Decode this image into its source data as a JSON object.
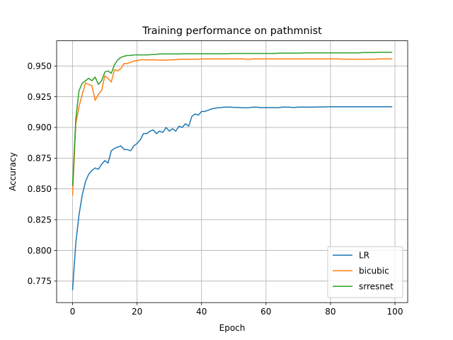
{
  "chart_data": {
    "type": "line",
    "title": "Training performance on pathmnist",
    "xlabel": "Epoch",
    "ylabel": "Accuracy",
    "xlim": [
      -4.95,
      103.95
    ],
    "ylim": [
      0.7575,
      0.9705
    ],
    "xticks": [
      0,
      20,
      40,
      60,
      80,
      100
    ],
    "yticks": [
      0.775,
      0.8,
      0.825,
      0.85,
      0.875,
      0.9,
      0.925,
      0.95
    ],
    "ytick_labels": [
      "0.775",
      "0.800",
      "0.825",
      "0.850",
      "0.875",
      "0.900",
      "0.925",
      "0.950"
    ],
    "grid": true,
    "legend_position": "lower-right",
    "series": [
      {
        "name": "LR",
        "color": "#1f77b4",
        "x": [
          0,
          1,
          2,
          3,
          4,
          5,
          6,
          7,
          8,
          9,
          10,
          11,
          12,
          13,
          14,
          15,
          16,
          17,
          18,
          19,
          20,
          21,
          22,
          23,
          24,
          25,
          26,
          27,
          28,
          29,
          30,
          31,
          32,
          33,
          34,
          35,
          36,
          37,
          38,
          39,
          40,
          41,
          42,
          43,
          44,
          45,
          46,
          47,
          48,
          49,
          50,
          51,
          52,
          53,
          54,
          55,
          56,
          57,
          58,
          59,
          60,
          61,
          62,
          63,
          64,
          65,
          66,
          67,
          68,
          69,
          70,
          71,
          72,
          73,
          74,
          75,
          76,
          77,
          78,
          79,
          80,
          81,
          82,
          83,
          84,
          85,
          86,
          87,
          88,
          89,
          90,
          91,
          92,
          93,
          94,
          95,
          96,
          97,
          98,
          99
        ],
        "values": [
          0.768,
          0.806,
          0.829,
          0.845,
          0.856,
          0.862,
          0.865,
          0.867,
          0.866,
          0.87,
          0.873,
          0.871,
          0.881,
          0.883,
          0.884,
          0.885,
          0.882,
          0.882,
          0.881,
          0.885,
          0.887,
          0.89,
          0.895,
          0.895,
          0.897,
          0.898,
          0.895,
          0.897,
          0.896,
          0.9,
          0.897,
          0.899,
          0.897,
          0.901,
          0.9,
          0.903,
          0.901,
          0.909,
          0.911,
          0.91,
          0.913,
          0.913,
          0.914,
          0.915,
          0.9155,
          0.916,
          0.9162,
          0.9165,
          0.9165,
          0.9165,
          0.9163,
          0.9163,
          0.9162,
          0.916,
          0.916,
          0.9162,
          0.9165,
          0.9165,
          0.9162,
          0.9162,
          0.9162,
          0.9162,
          0.9162,
          0.916,
          0.9162,
          0.9165,
          0.9165,
          0.9165,
          0.9163,
          0.9163,
          0.9165,
          0.9165,
          0.9165,
          0.9165,
          0.9165,
          0.9165,
          0.9167,
          0.9167,
          0.9167,
          0.9168,
          0.9168,
          0.9168,
          0.9168,
          0.9168,
          0.9168,
          0.9168,
          0.9168,
          0.9168,
          0.9168,
          0.9168,
          0.9168,
          0.9168,
          0.9168,
          0.9168,
          0.9168,
          0.9168,
          0.9168,
          0.9168,
          0.9168,
          0.9168
        ]
      },
      {
        "name": "bicubic",
        "color": "#ff7f0e",
        "x": [
          0,
          1,
          2,
          3,
          4,
          5,
          6,
          7,
          8,
          9,
          10,
          11,
          12,
          13,
          14,
          15,
          16,
          17,
          18,
          19,
          20,
          21,
          22,
          23,
          24,
          25,
          26,
          27,
          28,
          29,
          30,
          31,
          32,
          33,
          34,
          35,
          36,
          37,
          38,
          39,
          40,
          41,
          42,
          43,
          44,
          45,
          46,
          47,
          48,
          49,
          50,
          51,
          52,
          53,
          54,
          55,
          56,
          57,
          58,
          59,
          60,
          61,
          62,
          63,
          64,
          65,
          66,
          67,
          68,
          69,
          70,
          71,
          72,
          73,
          74,
          75,
          76,
          77,
          78,
          79,
          80,
          81,
          82,
          83,
          84,
          85,
          86,
          87,
          88,
          89,
          90,
          91,
          92,
          93,
          94,
          95,
          96,
          97,
          98,
          99
        ],
        "values": [
          0.845,
          0.903,
          0.917,
          0.927,
          0.936,
          0.935,
          0.934,
          0.922,
          0.927,
          0.93,
          0.942,
          0.94,
          0.937,
          0.947,
          0.946,
          0.948,
          0.952,
          0.952,
          0.953,
          0.954,
          0.9545,
          0.955,
          0.955,
          0.955,
          0.955,
          0.955,
          0.955,
          0.9548,
          0.9548,
          0.9548,
          0.955,
          0.955,
          0.9552,
          0.9555,
          0.9555,
          0.9555,
          0.9555,
          0.9555,
          0.9555,
          0.9555,
          0.9558,
          0.9558,
          0.9558,
          0.9558,
          0.9558,
          0.9558,
          0.9558,
          0.9558,
          0.9558,
          0.9558,
          0.9558,
          0.9558,
          0.9558,
          0.9558,
          0.9555,
          0.9555,
          0.9558,
          0.9558,
          0.9558,
          0.9558,
          0.9558,
          0.9558,
          0.9558,
          0.9558,
          0.9558,
          0.9558,
          0.9558,
          0.9558,
          0.9558,
          0.9558,
          0.9558,
          0.9558,
          0.9558,
          0.9558,
          0.9558,
          0.9558,
          0.9558,
          0.9558,
          0.9558,
          0.9558,
          0.9558,
          0.9558,
          0.9558,
          0.9558,
          0.9555,
          0.9555,
          0.9555,
          0.9555,
          0.9555,
          0.9555,
          0.9555,
          0.9555,
          0.9555,
          0.9555,
          0.9555,
          0.9558,
          0.9558,
          0.9558,
          0.9558,
          0.9558
        ]
      },
      {
        "name": "srresnet",
        "color": "#2ca02c",
        "x": [
          0,
          1,
          2,
          3,
          4,
          5,
          6,
          7,
          8,
          9,
          10,
          11,
          12,
          13,
          14,
          15,
          16,
          17,
          18,
          19,
          20,
          21,
          22,
          23,
          24,
          25,
          26,
          27,
          28,
          29,
          30,
          31,
          32,
          33,
          34,
          35,
          36,
          37,
          38,
          39,
          40,
          41,
          42,
          43,
          44,
          45,
          46,
          47,
          48,
          49,
          50,
          51,
          52,
          53,
          54,
          55,
          56,
          57,
          58,
          59,
          60,
          61,
          62,
          63,
          64,
          65,
          66,
          67,
          68,
          69,
          70,
          71,
          72,
          73,
          74,
          75,
          76,
          77,
          78,
          79,
          80,
          81,
          82,
          83,
          84,
          85,
          86,
          87,
          88,
          89,
          90,
          91,
          92,
          93,
          94,
          95,
          96,
          97,
          98,
          99
        ],
        "values": [
          0.853,
          0.907,
          0.93,
          0.936,
          0.938,
          0.94,
          0.938,
          0.941,
          0.935,
          0.938,
          0.945,
          0.946,
          0.944,
          0.951,
          0.955,
          0.957,
          0.958,
          0.9585,
          0.9585,
          0.959,
          0.959,
          0.959,
          0.959,
          0.959,
          0.9592,
          0.9595,
          0.9595,
          0.9598,
          0.9598,
          0.9598,
          0.9598,
          0.9598,
          0.9598,
          0.9598,
          0.96,
          0.96,
          0.96,
          0.96,
          0.96,
          0.96,
          0.96,
          0.96,
          0.96,
          0.96,
          0.96,
          0.96,
          0.96,
          0.96,
          0.96,
          0.9602,
          0.9602,
          0.9602,
          0.9602,
          0.9602,
          0.9602,
          0.9602,
          0.9602,
          0.9602,
          0.9602,
          0.9602,
          0.9602,
          0.9602,
          0.9602,
          0.9602,
          0.9605,
          0.9605,
          0.9605,
          0.9605,
          0.9605,
          0.9605,
          0.9605,
          0.9605,
          0.9607,
          0.9607,
          0.9607,
          0.9607,
          0.9607,
          0.9607,
          0.9607,
          0.9607,
          0.9607,
          0.9607,
          0.9607,
          0.9607,
          0.9607,
          0.9607,
          0.9607,
          0.9607,
          0.9607,
          0.9607,
          0.961,
          0.961,
          0.961,
          0.961,
          0.961,
          0.9612,
          0.9612,
          0.9612,
          0.9612,
          0.9612
        ]
      }
    ]
  }
}
